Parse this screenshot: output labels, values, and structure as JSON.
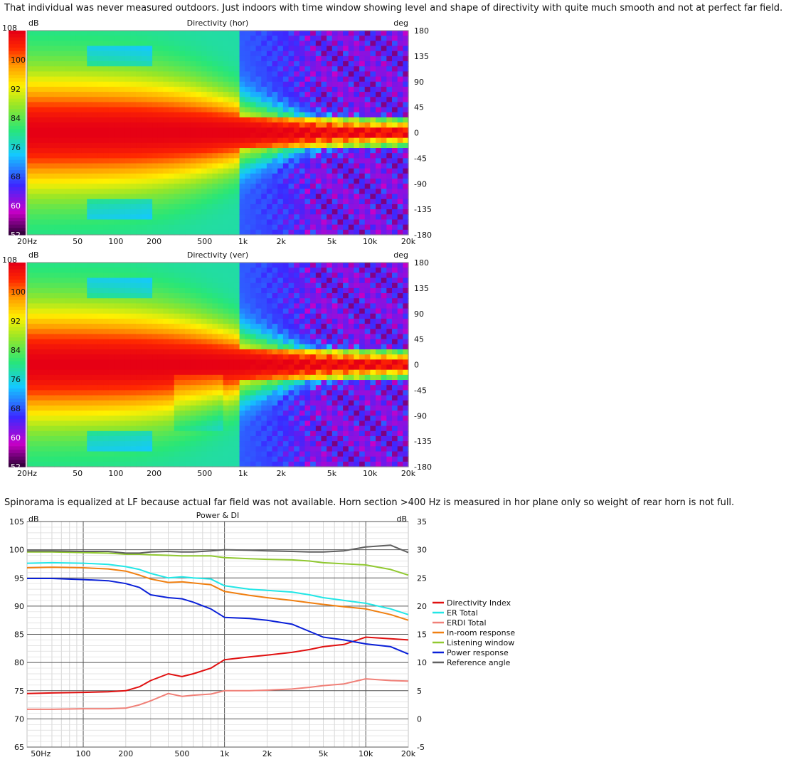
{
  "captions": {
    "top": "That individual was never measured outdoors. Just indoors with time window showing level and shape of directivity with quite much smooth and not at perfect far field.",
    "middle": "Spinorama is equalized at LF because actual far field was not available. Horn section >400 Hz is measured in hor plane only so weight of rear horn is not full."
  },
  "chart_data": [
    {
      "type": "heatmap",
      "title": "Directivity (hor)",
      "colorbar_label": "dB",
      "colorbar_ticks": [
        "108",
        "100",
        "92",
        "84",
        "76",
        "68",
        "60",
        "52"
      ],
      "ylabel_right": "deg",
      "x_ticks": [
        "20Hz",
        "50",
        "100",
        "200",
        "500",
        "1k",
        "2k",
        "5k",
        "10k",
        "20k"
      ],
      "x_tick_values": [
        20,
        50,
        100,
        200,
        500,
        1000,
        2000,
        5000,
        10000,
        20000
      ],
      "y_ticks": [
        "180",
        "135",
        "90",
        "45",
        "0",
        "-45",
        "-90",
        "-135",
        "-180"
      ],
      "xlim": [
        20,
        20000
      ],
      "x_scale": "log",
      "ylim": [
        -180,
        180
      ],
      "zlim": [
        52,
        108
      ]
    },
    {
      "type": "heatmap",
      "title": "Directivity (ver)",
      "colorbar_label": "dB",
      "colorbar_ticks": [
        "108",
        "100",
        "92",
        "84",
        "76",
        "68",
        "60",
        "52"
      ],
      "ylabel_right": "deg",
      "x_ticks": [
        "20Hz",
        "50",
        "100",
        "200",
        "500",
        "1k",
        "2k",
        "5k",
        "10k",
        "20k"
      ],
      "x_tick_values": [
        20,
        50,
        100,
        200,
        500,
        1000,
        2000,
        5000,
        10000,
        20000
      ],
      "y_ticks": [
        "180",
        "135",
        "90",
        "45",
        "0",
        "-45",
        "-90",
        "-135",
        "-180"
      ],
      "xlim": [
        20,
        20000
      ],
      "x_scale": "log",
      "ylim": [
        -180,
        180
      ],
      "zlim": [
        52,
        108
      ]
    },
    {
      "type": "line",
      "title": "Power & DI",
      "ylabel": "dB",
      "ylabel_right": "dB",
      "x_scale": "log",
      "xlim": [
        40,
        20000
      ],
      "ylim": [
        65,
        105
      ],
      "ylim_right": [
        -5,
        35
      ],
      "x_ticks": [
        "50Hz",
        "100",
        "200",
        "500",
        "1k",
        "2k",
        "5k",
        "10k",
        "20k"
      ],
      "x_tick_values": [
        50,
        100,
        200,
        500,
        1000,
        2000,
        5000,
        10000,
        20000
      ],
      "y_ticks": [
        "105",
        "100",
        "95",
        "90",
        "85",
        "80",
        "75",
        "70",
        "65"
      ],
      "y_ticks_right": [
        "35",
        "30",
        "25",
        "20",
        "15",
        "10",
        "5",
        "0",
        "-5"
      ],
      "grid": true,
      "legend_position": "right",
      "x": [
        40,
        60,
        100,
        150,
        200,
        250,
        300,
        400,
        500,
        600,
        800,
        1000,
        1500,
        2000,
        3000,
        4000,
        5000,
        7000,
        10000,
        15000,
        20000
      ],
      "series": [
        {
          "name": "Directivity Index",
          "color": "#e01010",
          "axis": "right",
          "values": [
            4.5,
            4.6,
            4.7,
            4.8,
            5.0,
            5.7,
            6.8,
            8.0,
            7.5,
            8.0,
            9.0,
            10.5,
            11.0,
            11.3,
            11.8,
            12.3,
            12.8,
            13.2,
            14.5,
            14.2,
            14.0
          ]
        },
        {
          "name": "ER Total",
          "color": "#22e6e6",
          "axis": "left",
          "values": [
            97.6,
            97.7,
            97.6,
            97.4,
            97.0,
            96.5,
            95.8,
            95.0,
            95.2,
            95.0,
            94.8,
            93.6,
            93.0,
            92.8,
            92.5,
            92.0,
            91.5,
            91.0,
            90.5,
            89.5,
            88.5
          ]
        },
        {
          "name": "ERDI Total",
          "color": "#f08078",
          "axis": "right",
          "values": [
            1.7,
            1.7,
            1.8,
            1.8,
            1.9,
            2.5,
            3.2,
            4.5,
            4.0,
            4.2,
            4.4,
            5.0,
            5.0,
            5.1,
            5.3,
            5.6,
            5.9,
            6.2,
            7.1,
            6.8,
            6.7
          ]
        },
        {
          "name": "In-room response",
          "color": "#f07f10",
          "axis": "left",
          "values": [
            96.8,
            96.9,
            96.8,
            96.6,
            96.2,
            95.5,
            94.8,
            94.2,
            94.3,
            94.1,
            93.8,
            92.6,
            91.9,
            91.5,
            91.0,
            90.6,
            90.3,
            89.9,
            89.5,
            88.5,
            87.5
          ]
        },
        {
          "name": "Listening window",
          "color": "#90c830",
          "axis": "left",
          "values": [
            99.6,
            99.6,
            99.5,
            99.4,
            99.2,
            99.2,
            99.1,
            99.0,
            98.9,
            98.9,
            98.9,
            98.6,
            98.4,
            98.3,
            98.2,
            98.0,
            97.7,
            97.5,
            97.3,
            96.5,
            95.5
          ]
        },
        {
          "name": "Power response",
          "color": "#0a20d8",
          "axis": "left",
          "values": [
            94.9,
            94.9,
            94.7,
            94.5,
            94.0,
            93.3,
            92.0,
            91.5,
            91.3,
            90.7,
            89.5,
            88.0,
            87.8,
            87.5,
            86.8,
            85.5,
            84.5,
            84.0,
            83.3,
            82.8,
            81.5
          ]
        },
        {
          "name": "Reference angle",
          "color": "#606060",
          "axis": "left",
          "values": [
            99.8,
            99.8,
            99.7,
            99.7,
            99.4,
            99.4,
            99.6,
            99.7,
            99.6,
            99.6,
            99.8,
            100.0,
            99.9,
            99.8,
            99.7,
            99.6,
            99.6,
            99.8,
            100.5,
            100.8,
            99.5
          ]
        }
      ]
    }
  ]
}
